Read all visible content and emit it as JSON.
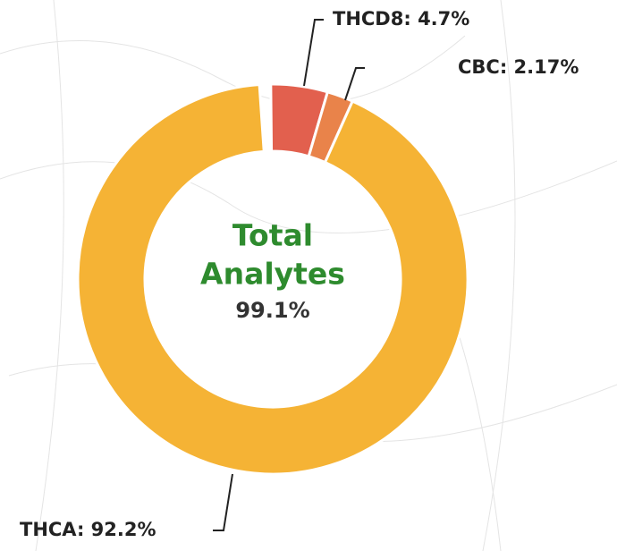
{
  "chart_data": {
    "type": "donut",
    "labels": [
      "THCD8: 4.7%",
      "CBC: 2.17%",
      "THCA: 92.2%"
    ],
    "values": [
      4.7,
      2.17,
      92.2
    ],
    "colors": [
      "#e2604e",
      "#e9834a",
      "#f5b335"
    ],
    "center_lines": [
      "Total",
      "Analytes"
    ],
    "total": 99.1,
    "total_label": "99.1%"
  }
}
